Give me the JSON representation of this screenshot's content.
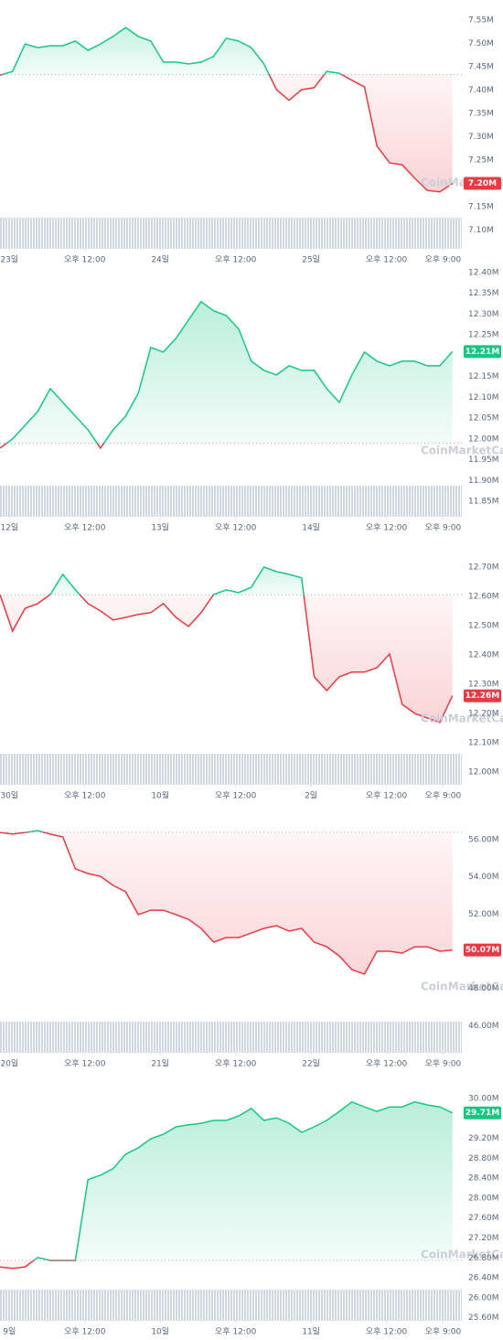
{
  "chart_data": [
    {
      "type": "line",
      "watermark": "CoinMarketCap",
      "x": [
        -1.5,
        0.5,
        2.5,
        4.5,
        6.5,
        8.5,
        10.5,
        12.5,
        14.5,
        16.5,
        18.5,
        20.5,
        22.5,
        24.5,
        26.5,
        28.5,
        30.5,
        32.5,
        34.5,
        36.5,
        38.5,
        40.5,
        42.5,
        44.5,
        46.5,
        48.5,
        50.5,
        52.5,
        54.5,
        56.5,
        58.5,
        60.5,
        62.5,
        64.5,
        66.5,
        68.5,
        70.5
      ],
      "values": [
        7.432,
        7.44,
        7.499,
        7.491,
        7.495,
        7.495,
        7.505,
        7.485,
        7.499,
        7.515,
        7.534,
        7.515,
        7.505,
        7.46,
        7.46,
        7.456,
        7.46,
        7.472,
        7.511,
        7.505,
        7.491,
        7.456,
        7.401,
        7.378,
        7.401,
        7.405,
        7.44,
        7.436,
        7.421,
        7.407,
        7.28,
        7.244,
        7.24,
        7.211,
        7.185,
        7.182,
        7.2
      ],
      "baseline": 7.433,
      "current": {
        "value": 7.2,
        "label": "7.20M"
      },
      "up_color": "#16c784",
      "down_color": "#ea3943",
      "xlim": [
        -1.5,
        72
      ],
      "ylim": [
        7.06,
        7.593
      ],
      "xticks": [
        {
          "value": 0,
          "label": "23일"
        },
        {
          "value": 12,
          "label": "오후 12:00"
        },
        {
          "value": 24,
          "label": "24일"
        },
        {
          "value": 36,
          "label": "오후 12:00"
        },
        {
          "value": 48,
          "label": "25일"
        },
        {
          "value": 60,
          "label": "오후 12:00"
        },
        {
          "value": 69,
          "label": "오후 9:00"
        }
      ],
      "yticks": [
        {
          "value": 7.55,
          "label": "7.55M"
        },
        {
          "value": 7.5,
          "label": "7.50M"
        },
        {
          "value": 7.45,
          "label": "7.45M"
        },
        {
          "value": 7.4,
          "label": "7.40M"
        },
        {
          "value": 7.35,
          "label": "7.35M"
        },
        {
          "value": 7.3,
          "label": "7.30M"
        },
        {
          "value": 7.25,
          "label": "7.25M"
        },
        {
          "value": 7.15,
          "label": "7.15M"
        },
        {
          "value": 7.1,
          "label": "7.10M"
        }
      ]
    },
    {
      "type": "line",
      "watermark": "CoinMarketCap",
      "x": [
        -1.5,
        0.5,
        2.5,
        4.5,
        6.5,
        8.5,
        10.5,
        12.5,
        14.5,
        16.5,
        18.5,
        20.5,
        22.5,
        24.5,
        26.5,
        28.5,
        30.5,
        32.5,
        34.5,
        36.5,
        38.5,
        40.5,
        42.5,
        44.5,
        46.5,
        48.5,
        50.5,
        52.5,
        54.5,
        56.5,
        58.5,
        60.5,
        62.5,
        64.5,
        66.5,
        68.5,
        70.5
      ],
      "values": [
        11.978,
        12.0,
        12.033,
        12.066,
        12.121,
        12.088,
        12.055,
        12.022,
        11.978,
        12.022,
        12.055,
        12.11,
        12.22,
        12.209,
        12.242,
        12.286,
        12.33,
        12.308,
        12.297,
        12.264,
        12.187,
        12.165,
        12.154,
        12.176,
        12.165,
        12.165,
        12.121,
        12.088,
        12.154,
        12.209,
        12.187,
        12.176,
        12.187,
        12.187,
        12.176,
        12.176,
        12.21
      ],
      "baseline": 11.99,
      "current": {
        "value": 12.21,
        "label": "12.21M"
      },
      "up_color": "#16c784",
      "down_color": "#ea3943",
      "xlim": [
        -1.5,
        72
      ],
      "ylim": [
        11.813,
        12.411
      ],
      "xticks": [
        {
          "value": 0,
          "label": "12일"
        },
        {
          "value": 12,
          "label": "오후 12:00"
        },
        {
          "value": 24,
          "label": "13일"
        },
        {
          "value": 36,
          "label": "오후 12:00"
        },
        {
          "value": 48,
          "label": "14일"
        },
        {
          "value": 60,
          "label": "오후 12:00"
        },
        {
          "value": 69,
          "label": "오후 9:00"
        }
      ],
      "yticks": [
        {
          "value": 12.4,
          "label": "12.40M"
        },
        {
          "value": 12.35,
          "label": "12.35M"
        },
        {
          "value": 12.3,
          "label": "12.30M"
        },
        {
          "value": 12.25,
          "label": "12.25M"
        },
        {
          "value": 12.15,
          "label": "12.15M"
        },
        {
          "value": 12.1,
          "label": "12.10M"
        },
        {
          "value": 12.05,
          "label": "12.05M"
        },
        {
          "value": 12.0,
          "label": "12.00M"
        },
        {
          "value": 11.95,
          "label": "11.95M"
        },
        {
          "value": 11.9,
          "label": "11.90M"
        },
        {
          "value": 11.85,
          "label": "11.85M"
        }
      ]
    },
    {
      "type": "line",
      "watermark": "CoinMarketCap",
      "x": [
        -1.5,
        0.5,
        2.5,
        4.5,
        6.5,
        8.5,
        10.5,
        12.5,
        14.5,
        16.5,
        18.5,
        20.5,
        22.5,
        24.5,
        26.5,
        28.5,
        30.5,
        32.5,
        34.5,
        36.5,
        38.5,
        40.5,
        42.5,
        44.5,
        46.5,
        48.5,
        50.5,
        52.5,
        54.5,
        56.5,
        58.5,
        60.5,
        62.5,
        64.5,
        66.5,
        68.5,
        70.5
      ],
      "values": [
        12.606,
        12.481,
        12.559,
        12.575,
        12.606,
        12.675,
        12.622,
        12.575,
        12.55,
        12.519,
        12.528,
        12.538,
        12.544,
        12.575,
        12.528,
        12.497,
        12.544,
        12.606,
        12.622,
        12.613,
        12.631,
        12.7,
        12.684,
        12.675,
        12.663,
        12.325,
        12.278,
        12.325,
        12.341,
        12.341,
        12.356,
        12.403,
        12.231,
        12.2,
        12.184,
        12.169,
        12.26
      ],
      "baseline": 12.605,
      "current": {
        "value": 12.26,
        "label": "12.26M"
      },
      "up_color": "#16c784",
      "down_color": "#ea3943",
      "xlim": [
        -1.5,
        72
      ],
      "ylim": [
        11.956,
        12.806
      ],
      "xticks": [
        {
          "value": 0,
          "label": "30일"
        },
        {
          "value": 12,
          "label": "오후 12:00"
        },
        {
          "value": 24,
          "label": "10월"
        },
        {
          "value": 36,
          "label": "오후 12:00"
        },
        {
          "value": 48,
          "label": "2일"
        },
        {
          "value": 60,
          "label": "오후 12:00"
        },
        {
          "value": 69,
          "label": "오후 9:00"
        }
      ],
      "yticks": [
        {
          "value": 12.7,
          "label": "12.70M"
        },
        {
          "value": 12.6,
          "label": "12.60M"
        },
        {
          "value": 12.5,
          "label": "12.50M"
        },
        {
          "value": 12.4,
          "label": "12.40M"
        },
        {
          "value": 12.3,
          "label": "12.30M"
        },
        {
          "value": 12.2,
          "label": "12.20M"
        },
        {
          "value": 12.1,
          "label": "12.10M"
        },
        {
          "value": 12.0,
          "label": "12.00M"
        }
      ]
    },
    {
      "type": "line",
      "watermark": "CoinMarketCap",
      "x": [
        -1.5,
        0.5,
        2.5,
        4.5,
        6.5,
        8.5,
        10.5,
        12.5,
        14.5,
        16.5,
        18.5,
        20.5,
        22.5,
        24.5,
        26.5,
        28.5,
        30.5,
        32.5,
        34.5,
        36.5,
        38.5,
        40.5,
        42.5,
        44.5,
        46.5,
        48.5,
        50.5,
        52.5,
        54.5,
        56.5,
        58.5,
        60.5,
        62.5,
        64.5,
        66.5,
        68.5,
        70.5
      ],
      "values": [
        56.39,
        56.3,
        56.39,
        56.49,
        56.3,
        56.15,
        54.43,
        54.18,
        54.03,
        53.54,
        53.2,
        51.97,
        52.21,
        52.21,
        51.97,
        51.72,
        51.23,
        50.49,
        50.74,
        50.74,
        50.98,
        51.23,
        51.38,
        51.08,
        51.23,
        50.49,
        50.24,
        49.75,
        49.01,
        48.77,
        50.0,
        50.0,
        49.9,
        50.24,
        50.24,
        50.0,
        50.07
      ],
      "baseline": 56.4,
      "current": {
        "value": 50.07,
        "label": "50.07M"
      },
      "up_color": "#16c784",
      "down_color": "#ea3943",
      "xlim": [
        -1.5,
        72
      ],
      "ylim": [
        44.54,
        57.92
      ],
      "xticks": [
        {
          "value": 0,
          "label": "20일"
        },
        {
          "value": 12,
          "label": "오후 12:00"
        },
        {
          "value": 24,
          "label": "21일"
        },
        {
          "value": 36,
          "label": "오후 12:00"
        },
        {
          "value": 48,
          "label": "22일"
        },
        {
          "value": 60,
          "label": "오후 12:00"
        },
        {
          "value": 69,
          "label": "오후 9:00"
        }
      ],
      "yticks": [
        {
          "value": 56,
          "label": "56.00M"
        },
        {
          "value": 54,
          "label": "54.00M"
        },
        {
          "value": 52,
          "label": "52.00M"
        },
        {
          "value": 48,
          "label": "48.00M"
        },
        {
          "value": 46,
          "label": "46.00M"
        }
      ]
    },
    {
      "type": "line",
      "watermark": "CoinMarketCap",
      "x": [
        -1.5,
        0.5,
        2.5,
        4.5,
        6.5,
        8.5,
        10.5,
        12.5,
        14.5,
        16.5,
        18.5,
        20.5,
        22.5,
        24.5,
        26.5,
        28.5,
        30.5,
        32.5,
        34.5,
        36.5,
        38.5,
        40.5,
        42.5,
        44.5,
        46.5,
        48.5,
        50.5,
        52.5,
        54.5,
        56.5,
        58.5,
        60.5,
        62.5,
        64.5,
        66.5,
        68.5,
        70.5
      ],
      "values": [
        26.62,
        26.59,
        26.62,
        26.81,
        26.75,
        26.75,
        26.75,
        28.37,
        28.46,
        28.59,
        28.88,
        29.01,
        29.19,
        29.28,
        29.43,
        29.47,
        29.5,
        29.56,
        29.56,
        29.65,
        29.8,
        29.56,
        29.61,
        29.5,
        29.32,
        29.43,
        29.56,
        29.74,
        29.93,
        29.83,
        29.74,
        29.83,
        29.83,
        29.93,
        29.87,
        29.83,
        29.71
      ],
      "baseline": 26.75,
      "current": {
        "value": 29.71,
        "label": "29.71M"
      },
      "up_color": "#16c784",
      "down_color": "#ea3943",
      "xlim": [
        -1.5,
        72
      ],
      "ylim": [
        25.54,
        30.53
      ],
      "xticks": [
        {
          "value": 0,
          "label": "9일"
        },
        {
          "value": 12,
          "label": "오후 12:00"
        },
        {
          "value": 24,
          "label": "10일"
        },
        {
          "value": 36,
          "label": "오후 12:00"
        },
        {
          "value": 48,
          "label": "11일"
        },
        {
          "value": 60,
          "label": "오후 12:00"
        },
        {
          "value": 69,
          "label": "오후 9:00"
        }
      ],
      "yticks": [
        {
          "value": 30,
          "label": "30.00M"
        },
        {
          "value": 29.2,
          "label": "29.20M"
        },
        {
          "value": 28.8,
          "label": "28.80M"
        },
        {
          "value": 28.4,
          "label": "28.40M"
        },
        {
          "value": 28.0,
          "label": "28.00M"
        },
        {
          "value": 27.6,
          "label": "27.60M"
        },
        {
          "value": 27.2,
          "label": "27.20M"
        },
        {
          "value": 26.8,
          "label": "26.80M"
        },
        {
          "value": 26.4,
          "label": "26.40M"
        },
        {
          "value": 26.0,
          "label": "26.00M"
        },
        {
          "value": 25.6,
          "label": "25.60M"
        }
      ]
    }
  ]
}
